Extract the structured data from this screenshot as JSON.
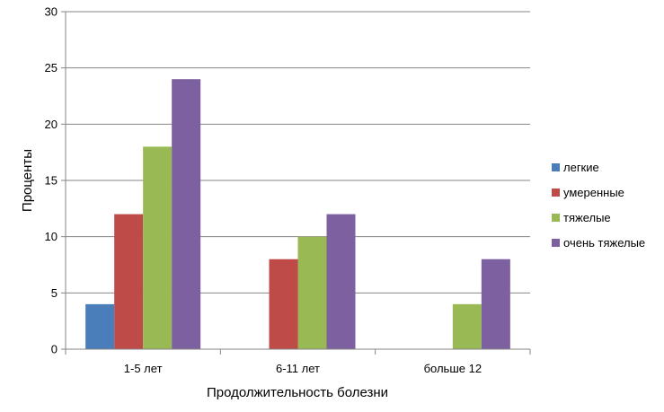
{
  "chart_data": {
    "type": "bar",
    "title": "",
    "xlabel": "Продолжительность болезни",
    "ylabel": "Проценты",
    "categories": [
      "1-5 лет",
      "6-11 лет",
      "больше 12"
    ],
    "series": [
      {
        "name": "легкие",
        "values": [
          4,
          0,
          0
        ],
        "color": "#4a7ebb"
      },
      {
        "name": "умеренные",
        "values": [
          12,
          8,
          0
        ],
        "color": "#be4b48"
      },
      {
        "name": "тяжелые",
        "values": [
          18,
          10,
          4
        ],
        "color": "#98b954"
      },
      {
        "name": "очень тяжелые",
        "values": [
          24,
          12,
          8
        ],
        "color": "#7d60a0"
      }
    ],
    "ylim": [
      0,
      30
    ],
    "yticks": [
      "0",
      "5",
      "10",
      "15",
      "20",
      "25",
      "30"
    ],
    "grid": true,
    "legend_position": "right"
  }
}
